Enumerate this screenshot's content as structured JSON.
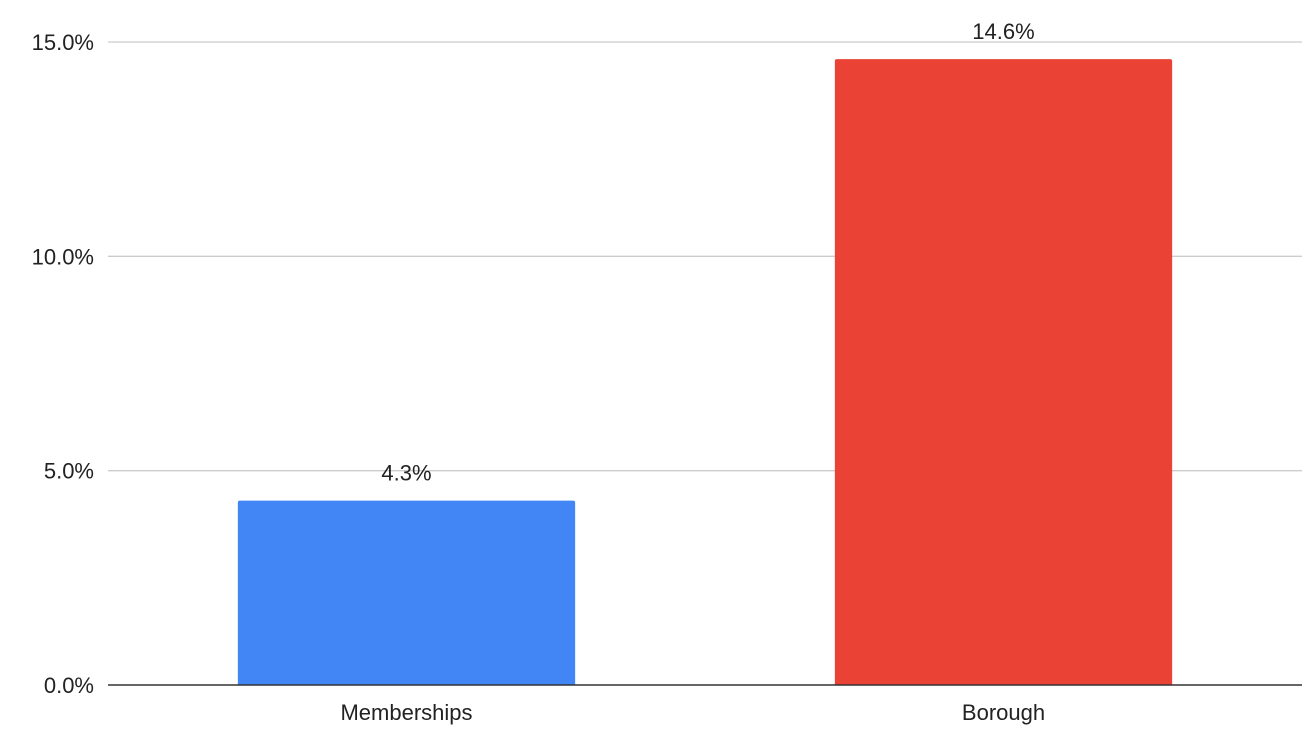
{
  "chart_data": {
    "type": "bar",
    "categories": [
      "Memberships",
      "Borough"
    ],
    "values": [
      4.3,
      14.6
    ],
    "value_labels": [
      "4.3%",
      "14.6%"
    ],
    "colors": [
      "#4285f4",
      "#ea4335"
    ],
    "title": "",
    "xlabel": "",
    "ylabel": "",
    "ylim": [
      0,
      15
    ],
    "yticks": [
      0,
      5,
      10,
      15
    ],
    "ytick_labels": [
      "0.0%",
      "5.0%",
      "10.0%",
      "15.0%"
    ],
    "grid": true,
    "legend": "none"
  }
}
